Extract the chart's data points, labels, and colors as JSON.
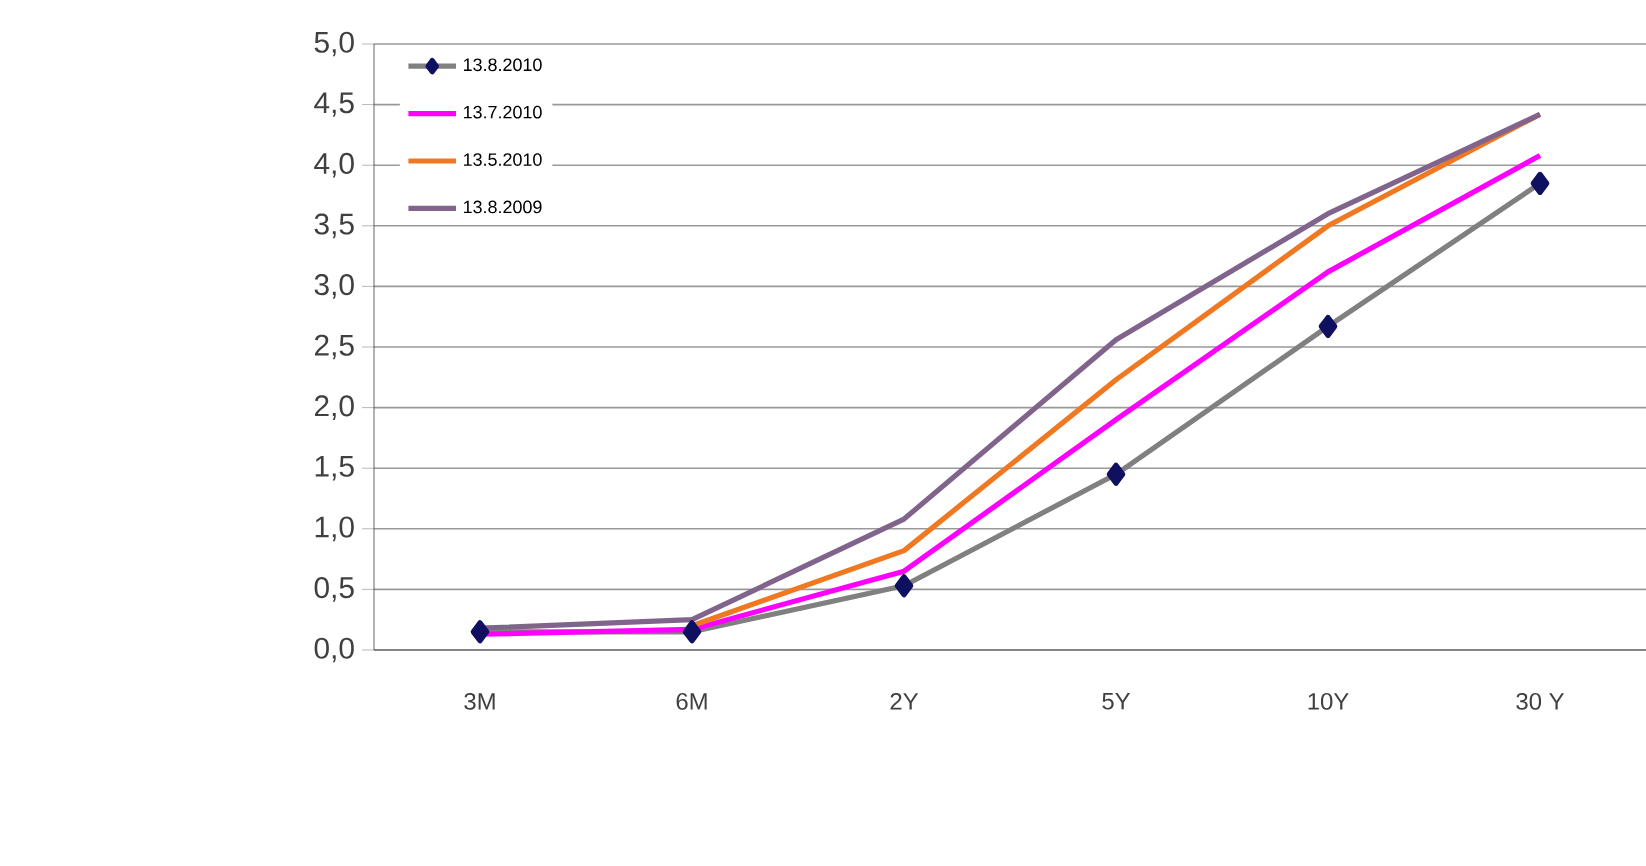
{
  "chart_data": {
    "type": "line",
    "categories": [
      "3M",
      "6M",
      "2Y",
      "5Y",
      "10Y",
      "30 Y"
    ],
    "series": [
      {
        "name": "13.8.2010",
        "color": "#808080",
        "marker": "diamond",
        "values": [
          0.15,
          0.15,
          0.53,
          1.45,
          2.67,
          3.85
        ]
      },
      {
        "name": "13.7.2010",
        "color": "#ff00ff",
        "marker": "none",
        "values": [
          0.13,
          0.17,
          0.65,
          1.9,
          3.12,
          4.08
        ]
      },
      {
        "name": "13.5.2010",
        "color": "#f07820",
        "marker": "none",
        "values": [
          null,
          0.2,
          0.82,
          2.23,
          3.5,
          4.42
        ]
      },
      {
        "name": "13.8.2009",
        "color": "#80648c",
        "marker": "none",
        "values": [
          0.18,
          0.25,
          1.08,
          2.56,
          3.6,
          4.42
        ]
      }
    ],
    "ylim": [
      0,
      5
    ],
    "yticks": [
      {
        "value": 0,
        "label": "0,0"
      },
      {
        "value": 0.5,
        "label": "0,5"
      },
      {
        "value": 1,
        "label": "1,0"
      },
      {
        "value": 1.5,
        "label": "1,5"
      },
      {
        "value": 2,
        "label": "2,0"
      },
      {
        "value": 2.5,
        "label": "2,5"
      },
      {
        "value": 3,
        "label": "3,0"
      },
      {
        "value": 3.5,
        "label": "3,5"
      },
      {
        "value": 4,
        "label": "4,0"
      },
      {
        "value": 4.5,
        "label": "4,5"
      },
      {
        "value": 5,
        "label": "5,0"
      }
    ],
    "grid": "y",
    "legend": "top left",
    "line_style": "solid"
  }
}
